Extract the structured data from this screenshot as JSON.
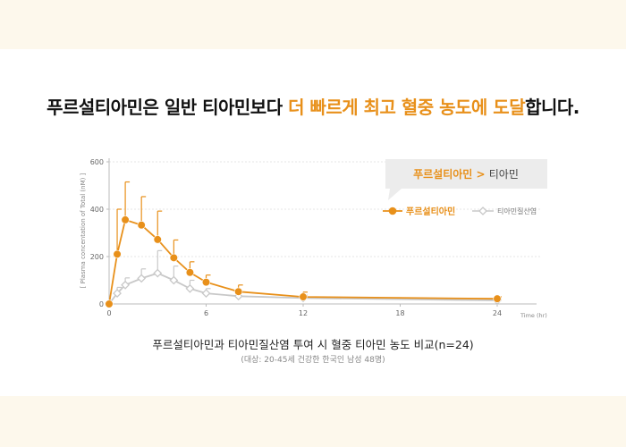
{
  "headline": {
    "part1": "푸르설티아민은 일반 티아민보다 ",
    "highlight": "더 빠르게 최고 혈중 농도에 도달",
    "part2": "합니다."
  },
  "chart_data": {
    "type": "line",
    "callout": {
      "winner": "푸르설티아민",
      "symbol": " > ",
      "loser": "티아민"
    },
    "ylabel": "[ Plasma concentation of Total (nM) ]",
    "xlabel": "Time (hr)",
    "xticks": [
      0,
      6,
      12,
      18,
      24
    ],
    "yticks": [
      0,
      200,
      400,
      600
    ],
    "xlim": [
      0,
      24
    ],
    "ylim": [
      0,
      600
    ],
    "grid": true,
    "legend_position": "top-right",
    "series": [
      {
        "name": "푸르설티아민",
        "color": "#e8901a",
        "marker": "circle",
        "points": [
          {
            "x": 0,
            "y": 0,
            "err": 0
          },
          {
            "x": 0.5,
            "y": 210,
            "err": 190
          },
          {
            "x": 1,
            "y": 355,
            "err": 160
          },
          {
            "x": 2,
            "y": 333,
            "err": 120
          },
          {
            "x": 3,
            "y": 272,
            "err": 120
          },
          {
            "x": 4,
            "y": 195,
            "err": 75
          },
          {
            "x": 5,
            "y": 133,
            "err": 45
          },
          {
            "x": 6,
            "y": 92,
            "err": 30
          },
          {
            "x": 8,
            "y": 52,
            "err": 28
          },
          {
            "x": 12,
            "y": 30,
            "err": 20
          },
          {
            "x": 24,
            "y": 22,
            "err": 8
          }
        ]
      },
      {
        "name": "티아민질산염",
        "color": "#c8c8c8",
        "marker": "diamond",
        "points": [
          {
            "x": 0,
            "y": 0,
            "err": 0
          },
          {
            "x": 0.5,
            "y": 45,
            "err": 25
          },
          {
            "x": 1,
            "y": 80,
            "err": 30
          },
          {
            "x": 2,
            "y": 108,
            "err": 40
          },
          {
            "x": 3,
            "y": 130,
            "err": 95
          },
          {
            "x": 4,
            "y": 100,
            "err": 60
          },
          {
            "x": 5,
            "y": 65,
            "err": 35
          },
          {
            "x": 6,
            "y": 45,
            "err": 20
          },
          {
            "x": 8,
            "y": 33,
            "err": 15
          },
          {
            "x": 12,
            "y": 25,
            "err": 12
          },
          {
            "x": 24,
            "y": 15,
            "err": 6
          }
        ]
      }
    ]
  },
  "caption": "푸르설티아민과 티아민질산염 투여 시 혈중 티아민 농도 비교(n=24)",
  "subcaption": "(대상: 20-45세 건강한 한국인 남성 48명)"
}
